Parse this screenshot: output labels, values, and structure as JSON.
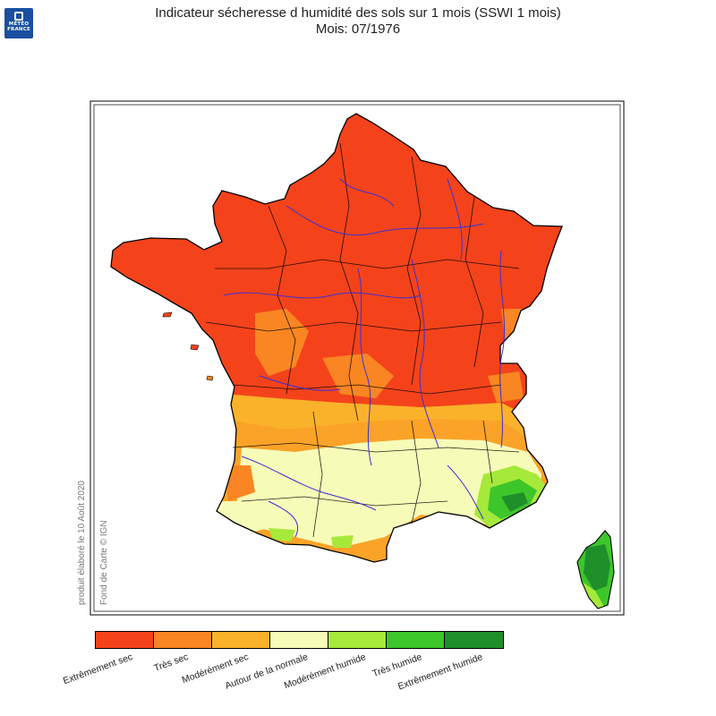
{
  "logo": {
    "line1": "MÉTÉO",
    "line2": "FRANCE"
  },
  "title": {
    "main": "Indicateur sécheresse d humidité des sols sur 1 mois (SSWI 1 mois)",
    "sub": "Mois: 07/1976"
  },
  "credits": {
    "produced": "produit élaboré le 10 Août 2020",
    "basemap": "Fond de Carte © IGN"
  },
  "legend": [
    {
      "label": "Extrêmement sec",
      "color": "#f4431b"
    },
    {
      "label": "Très sec",
      "color": "#f98622"
    },
    {
      "label": "Modérément sec",
      "color": "#fbb22b"
    },
    {
      "label": "Autour de la normale",
      "color": "#f7fbb8"
    },
    {
      "label": "Modérément humide",
      "color": "#a6e93a"
    },
    {
      "label": "Très humide",
      "color": "#3dc62a"
    },
    {
      "label": "Extrêmement humide",
      "color": "#1f8f2a"
    }
  ],
  "map_data": {
    "type": "choropleth",
    "region": "France",
    "period": "07/1976",
    "dominant_class_north": "Extrêmement sec",
    "south_classes": [
      "Très sec",
      "Modérément sec",
      "Autour de la normale"
    ],
    "southeast_corsica_classes": [
      "Modérément humide",
      "Très humide",
      "Extrêmement humide"
    ],
    "river_color": "#3a2fd6"
  }
}
